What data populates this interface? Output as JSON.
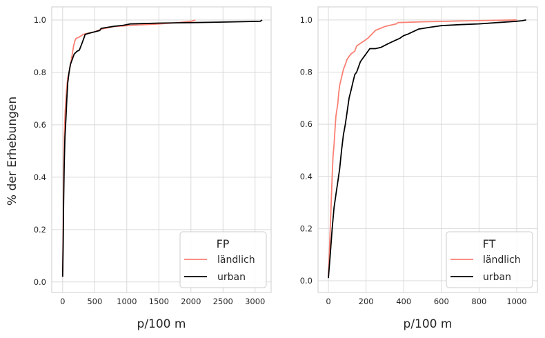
{
  "figure": {
    "ylabel": "% der Erhebungen"
  },
  "chart_data": [
    {
      "type": "line",
      "xlabel": "p/100 m",
      "ylabel": "% der Erhebungen",
      "xlim": [
        -170,
        3250
      ],
      "ylim": [
        -0.04,
        1.05
      ],
      "xticks": [
        0,
        500,
        1000,
        1500,
        2000,
        2500,
        3000
      ],
      "yticks": [
        0.0,
        0.2,
        0.4,
        0.6,
        0.8,
        1.0
      ],
      "grid": true,
      "legend": {
        "title": "FP",
        "placement": "bottom-right"
      },
      "series": [
        {
          "name": "ländlich",
          "color": "#fa8072",
          "points": [
            [
              0,
              0.02
            ],
            [
              8,
              0.2
            ],
            [
              15,
              0.4
            ],
            [
              25,
              0.55
            ],
            [
              40,
              0.65
            ],
            [
              60,
              0.73
            ],
            [
              80,
              0.78
            ],
            [
              100,
              0.8
            ],
            [
              130,
              0.84
            ],
            [
              150,
              0.87
            ],
            [
              170,
              0.9
            ],
            [
              190,
              0.92
            ],
            [
              210,
              0.93
            ],
            [
              260,
              0.935
            ],
            [
              320,
              0.945
            ],
            [
              400,
              0.95
            ],
            [
              500,
              0.955
            ],
            [
              600,
              0.965
            ],
            [
              800,
              0.975
            ],
            [
              1100,
              0.98
            ],
            [
              1500,
              0.985
            ],
            [
              1800,
              0.99
            ],
            [
              2000,
              0.995
            ],
            [
              2070,
              1.0
            ]
          ]
        },
        {
          "name": "urban",
          "color": "#000000",
          "points": [
            [
              0,
              0.02
            ],
            [
              8,
              0.15
            ],
            [
              15,
              0.3
            ],
            [
              25,
              0.45
            ],
            [
              35,
              0.55
            ],
            [
              50,
              0.62
            ],
            [
              65,
              0.7
            ],
            [
              80,
              0.76
            ],
            [
              100,
              0.8
            ],
            [
              120,
              0.83
            ],
            [
              150,
              0.85
            ],
            [
              180,
              0.87
            ],
            [
              220,
              0.88
            ],
            [
              260,
              0.885
            ],
            [
              300,
              0.91
            ],
            [
              330,
              0.93
            ],
            [
              350,
              0.945
            ],
            [
              420,
              0.95
            ],
            [
              500,
              0.955
            ],
            [
              550,
              0.958
            ],
            [
              580,
              0.96
            ],
            [
              600,
              0.968
            ],
            [
              700,
              0.972
            ],
            [
              800,
              0.976
            ],
            [
              950,
              0.98
            ],
            [
              1050,
              0.985
            ],
            [
              1500,
              0.988
            ],
            [
              2000,
              0.99
            ],
            [
              2500,
              0.992
            ],
            [
              3080,
              0.995
            ],
            [
              3110,
              1.0
            ]
          ]
        }
      ]
    },
    {
      "type": "line",
      "xlabel": "p/100 m",
      "ylabel": "",
      "xlim": [
        -55,
        1110
      ],
      "ylim": [
        -0.045,
        1.05
      ],
      "xticks": [
        0,
        200,
        400,
        600,
        800,
        1000
      ],
      "yticks": [
        0.0,
        0.2,
        0.4,
        0.6,
        0.8,
        1.0
      ],
      "grid": true,
      "legend": {
        "title": "FT",
        "placement": "bottom-right"
      },
      "series": [
        {
          "name": "ländlich",
          "color": "#fa8072",
          "points": [
            [
              0,
              0.02
            ],
            [
              5,
              0.1
            ],
            [
              10,
              0.2
            ],
            [
              15,
              0.3
            ],
            [
              20,
              0.4
            ],
            [
              25,
              0.48
            ],
            [
              30,
              0.52
            ],
            [
              35,
              0.58
            ],
            [
              40,
              0.63
            ],
            [
              50,
              0.68
            ],
            [
              55,
              0.72
            ],
            [
              60,
              0.75
            ],
            [
              70,
              0.78
            ],
            [
              80,
              0.81
            ],
            [
              90,
              0.83
            ],
            [
              100,
              0.85
            ],
            [
              110,
              0.86
            ],
            [
              120,
              0.87
            ],
            [
              140,
              0.88
            ],
            [
              150,
              0.9
            ],
            [
              170,
              0.91
            ],
            [
              190,
              0.92
            ],
            [
              210,
              0.93
            ],
            [
              230,
              0.945
            ],
            [
              250,
              0.96
            ],
            [
              300,
              0.975
            ],
            [
              330,
              0.98
            ],
            [
              360,
              0.985
            ],
            [
              370,
              0.99
            ],
            [
              500,
              0.993
            ],
            [
              700,
              0.996
            ],
            [
              1000,
              1.0
            ]
          ]
        },
        {
          "name": "urban",
          "color": "#000000",
          "points": [
            [
              0,
              0.01
            ],
            [
              10,
              0.1
            ],
            [
              20,
              0.2
            ],
            [
              30,
              0.28
            ],
            [
              40,
              0.33
            ],
            [
              50,
              0.38
            ],
            [
              60,
              0.43
            ],
            [
              70,
              0.5
            ],
            [
              80,
              0.56
            ],
            [
              90,
              0.6
            ],
            [
              100,
              0.65
            ],
            [
              110,
              0.7
            ],
            [
              120,
              0.73
            ],
            [
              130,
              0.76
            ],
            [
              140,
              0.79
            ],
            [
              150,
              0.8
            ],
            [
              160,
              0.82
            ],
            [
              170,
              0.84
            ],
            [
              180,
              0.85
            ],
            [
              190,
              0.86
            ],
            [
              200,
              0.87
            ],
            [
              220,
              0.89
            ],
            [
              250,
              0.89
            ],
            [
              280,
              0.895
            ],
            [
              320,
              0.91
            ],
            [
              350,
              0.92
            ],
            [
              380,
              0.93
            ],
            [
              400,
              0.94
            ],
            [
              420,
              0.945
            ],
            [
              450,
              0.955
            ],
            [
              480,
              0.965
            ],
            [
              550,
              0.973
            ],
            [
              600,
              0.978
            ],
            [
              700,
              0.982
            ],
            [
              800,
              0.985
            ],
            [
              900,
              0.99
            ],
            [
              1000,
              0.995
            ],
            [
              1030,
              0.997
            ],
            [
              1050,
              1.0
            ]
          ]
        }
      ]
    }
  ]
}
